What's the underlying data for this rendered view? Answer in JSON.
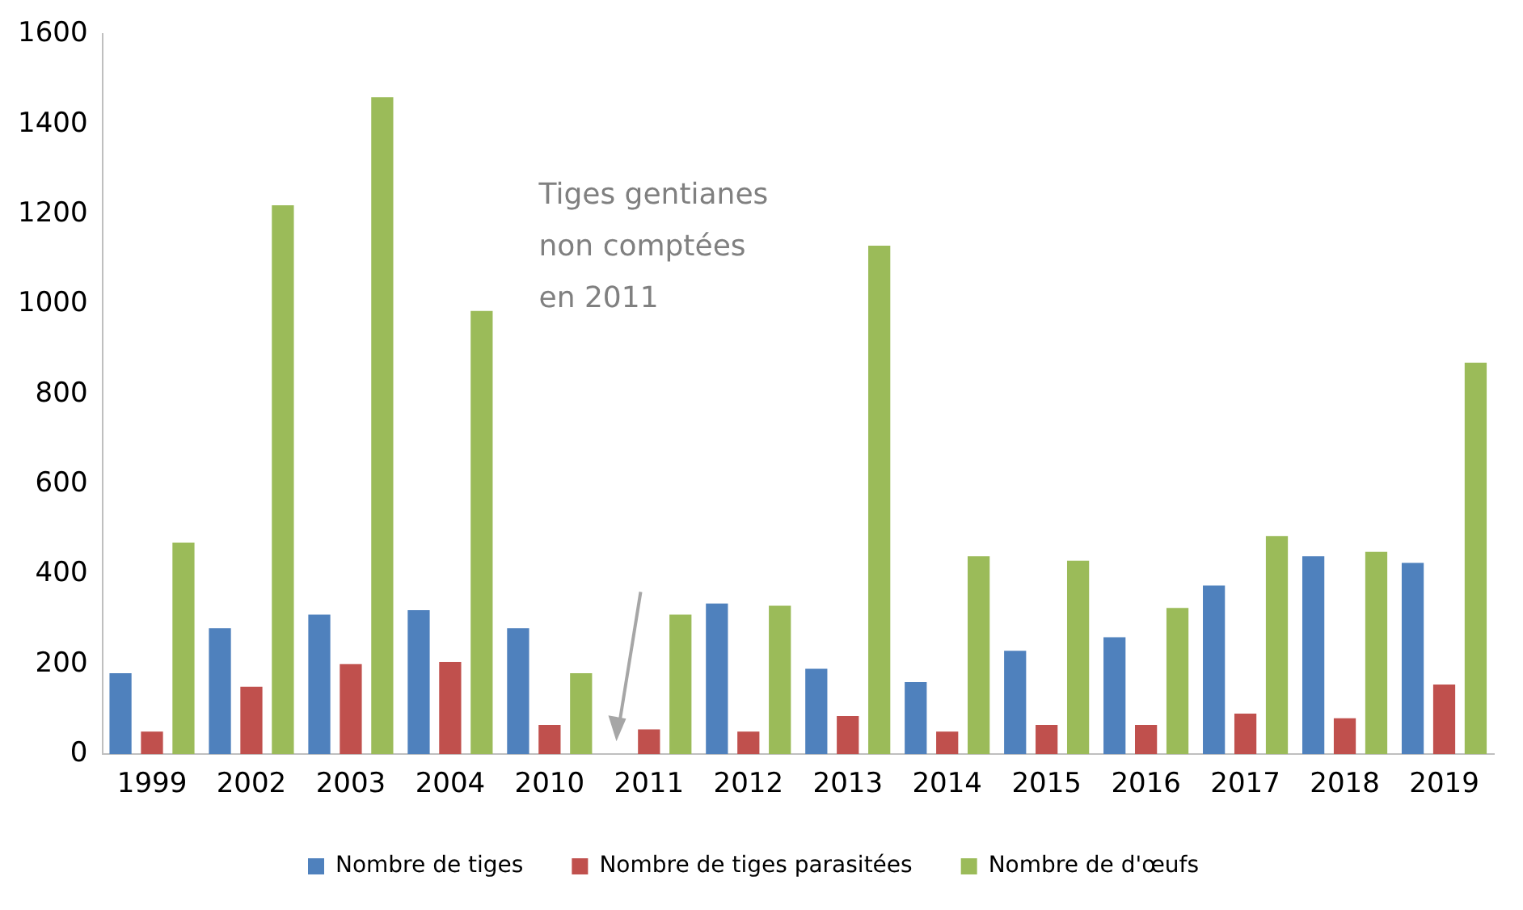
{
  "chart_data": {
    "type": "bar",
    "categories": [
      "1999",
      "2002",
      "2003",
      "2004",
      "2010",
      "2011",
      "2012",
      "2013",
      "2014",
      "2015",
      "2016",
      "2017",
      "2018",
      "2019"
    ],
    "series": [
      {
        "name": "Nombre de tiges",
        "color": "#4f81bd",
        "values": [
          180,
          280,
          310,
          320,
          280,
          null,
          335,
          190,
          160,
          230,
          260,
          375,
          440,
          425
        ]
      },
      {
        "name": "Nombre de tiges parasitées",
        "color": "#c0504d",
        "values": [
          50,
          150,
          200,
          205,
          65,
          55,
          50,
          85,
          50,
          65,
          65,
          90,
          80,
          155
        ]
      },
      {
        "name": "Nombre de d'œufs",
        "color": "#9bbb59",
        "values": [
          470,
          1220,
          1460,
          985,
          180,
          310,
          330,
          1130,
          440,
          430,
          325,
          485,
          450,
          870
        ]
      }
    ],
    "ylim": [
      0,
      1600
    ],
    "yticks": [
      0,
      200,
      400,
      600,
      800,
      1000,
      1200,
      1400,
      1600
    ],
    "grid": false,
    "legend": "bottom",
    "annotations": [
      "Tiges gentianes non comptées en 2011"
    ]
  }
}
